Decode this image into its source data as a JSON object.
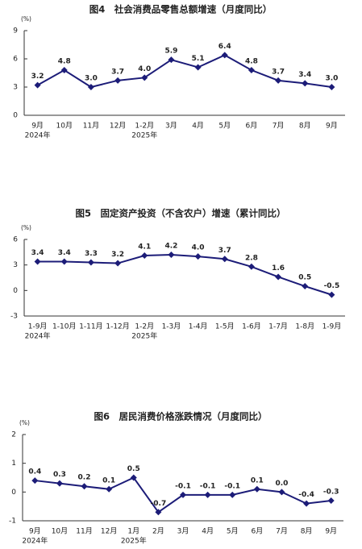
{
  "chart_data": [
    {
      "type": "line",
      "title": "图4　社会消费品零售总额增速（月度同比）",
      "unit": "(%)",
      "categories": [
        "9月",
        "10月",
        "11月",
        "12月",
        "1-2月",
        "3月",
        "4月",
        "5月",
        "6月",
        "7月",
        "8月",
        "9月"
      ],
      "year_labels": [
        "2024年",
        null,
        null,
        null,
        "2025年",
        null,
        null,
        null,
        null,
        null,
        null,
        null
      ],
      "values": [
        3.2,
        4.8,
        3.0,
        3.7,
        4.0,
        5.9,
        5.1,
        6.4,
        4.8,
        3.7,
        3.4,
        3.0
      ],
      "value_labels": [
        "3.2",
        "4.8",
        "3.0",
        "3.7",
        "4.0",
        "5.9",
        "5.1",
        "6.4",
        "4.8",
        "3.7",
        "3.4",
        "3.0"
      ],
      "color": "#1c1c78",
      "ylim": [
        0,
        9
      ],
      "yticks": [
        0,
        3,
        6,
        9
      ]
    },
    {
      "type": "line",
      "title": "图5　固定资产投资（不含农户）增速（累计同比）",
      "unit": "(%)",
      "categories": [
        "1-9月",
        "1-10月",
        "1-11月",
        "1-12月",
        "1-2月",
        "1-3月",
        "1-4月",
        "1-5月",
        "1-6月",
        "1-7月",
        "1-8月",
        "1-9月"
      ],
      "year_labels": [
        "2024年",
        null,
        null,
        null,
        "2025年",
        null,
        null,
        null,
        null,
        null,
        null,
        null
      ],
      "values": [
        3.4,
        3.4,
        3.3,
        3.2,
        4.1,
        4.2,
        4.0,
        3.7,
        2.8,
        1.6,
        0.5,
        -0.5
      ],
      "value_labels": [
        "3.4",
        "3.4",
        "3.3",
        "3.2",
        "4.1",
        "4.2",
        "4.0",
        "3.7",
        "2.8",
        "1.6",
        "0.5",
        "-0.5"
      ],
      "color": "#1c1c78",
      "ylim": [
        -3,
        6
      ],
      "yticks": [
        -3,
        0,
        3,
        6
      ]
    },
    {
      "type": "line",
      "title": "图6　居民消费价格涨跌情况（月度同比）",
      "unit": "(%)",
      "categories": [
        "9月",
        "10月",
        "11月",
        "12月",
        "1月",
        "2月",
        "3月",
        "4月",
        "5月",
        "6月",
        "7月",
        "8月",
        "9月"
      ],
      "year_labels": [
        "2024年",
        null,
        null,
        null,
        "2025年",
        null,
        null,
        null,
        null,
        null,
        null,
        null,
        null
      ],
      "values": [
        0.4,
        0.3,
        0.2,
        0.1,
        0.5,
        -0.7,
        -0.1,
        -0.1,
        -0.1,
        0.1,
        0.0,
        -0.4,
        -0.3
      ],
      "value_labels": [
        "0.4",
        "0.3",
        "0.2",
        "0.1",
        "0.5",
        "-0.7",
        "-0.1",
        "-0.1",
        "-0.1",
        "0.1",
        "0.0",
        "-0.4",
        "-0.3"
      ],
      "color": "#1c1c78",
      "ylim": [
        -1,
        2
      ],
      "yticks": [
        -1,
        0,
        1,
        2
      ]
    }
  ]
}
